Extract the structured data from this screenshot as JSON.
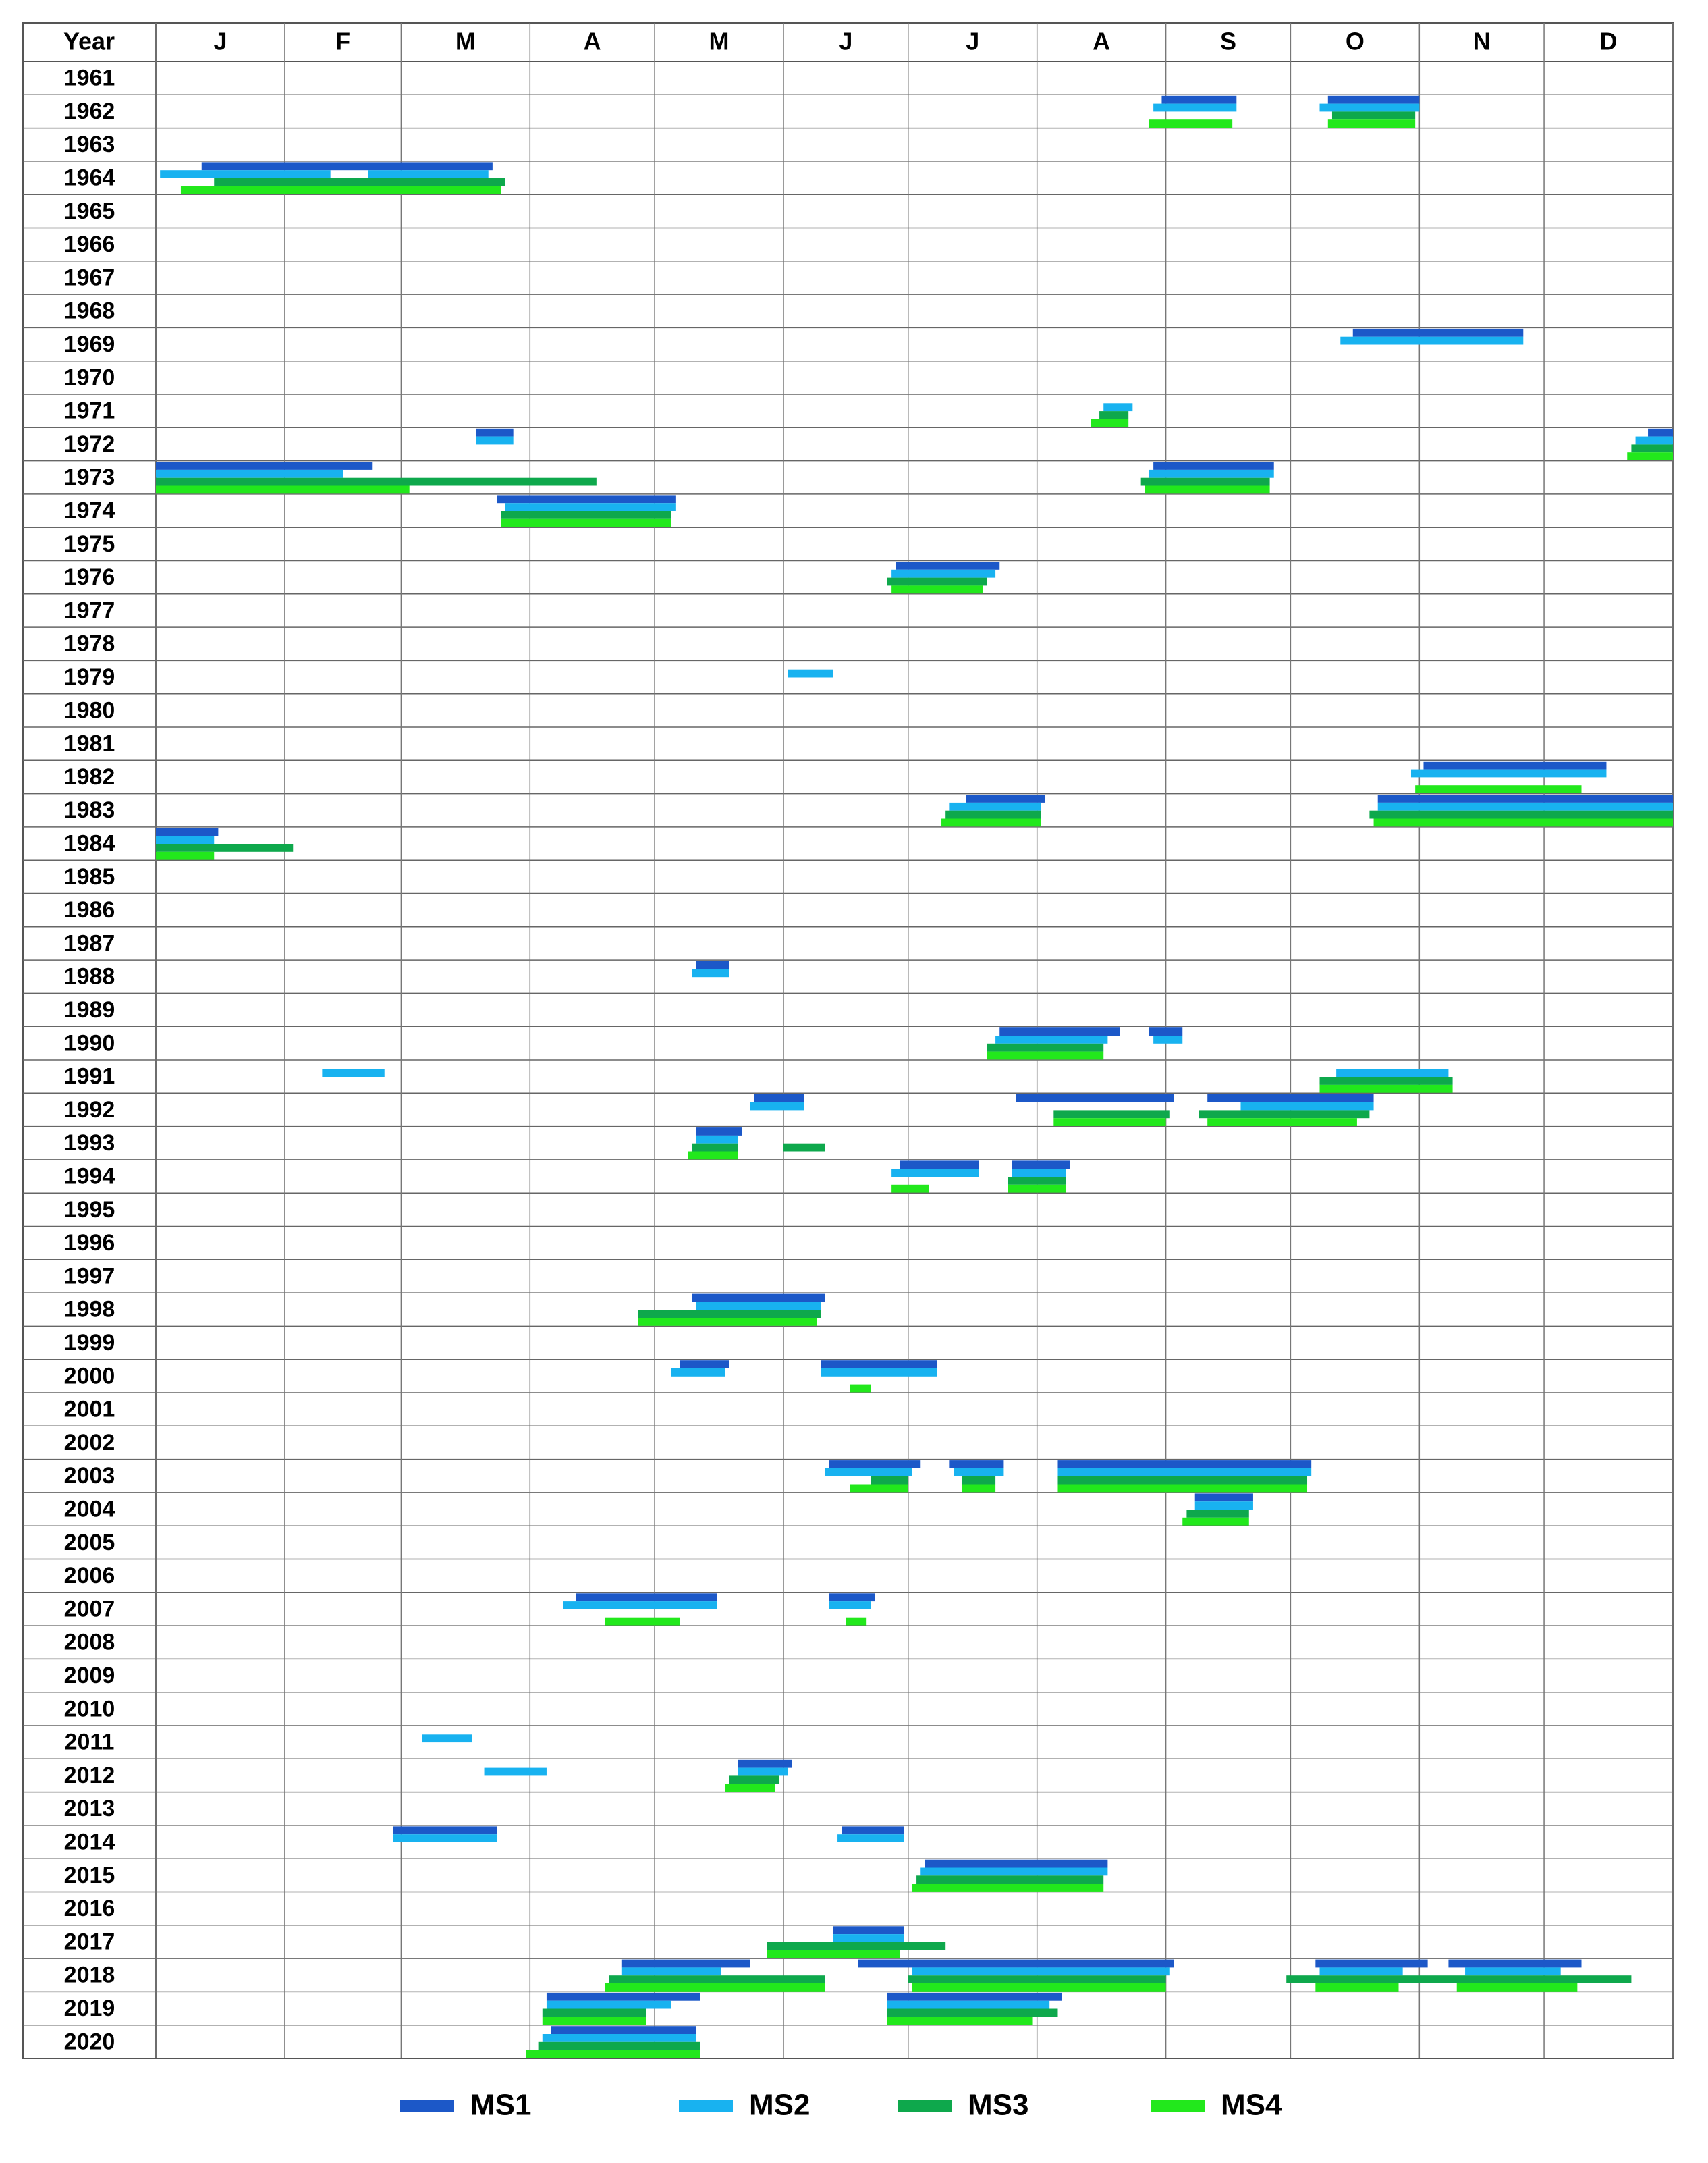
{
  "chart_data": {
    "type": "gantt",
    "row_header": "Year",
    "months": [
      "J",
      "F",
      "M",
      "A",
      "M",
      "J",
      "J",
      "A",
      "S",
      "O",
      "N",
      "D"
    ],
    "xlim": [
      0,
      365
    ],
    "xticks": [
      0,
      31,
      59,
      90,
      120,
      151,
      181,
      212,
      243,
      273,
      304,
      334,
      365
    ],
    "categories": [
      "1961",
      "1962",
      "1963",
      "1964",
      "1965",
      "1966",
      "1967",
      "1968",
      "1969",
      "1970",
      "1971",
      "1972",
      "1973",
      "1974",
      "1975",
      "1976",
      "1977",
      "1978",
      "1979",
      "1980",
      "1981",
      "1982",
      "1983",
      "1984",
      "1985",
      "1986",
      "1987",
      "1988",
      "1989",
      "1990",
      "1991",
      "1992",
      "1993",
      "1994",
      "1995",
      "1996",
      "1997",
      "1998",
      "1999",
      "2000",
      "2001",
      "2002",
      "2003",
      "2004",
      "2005",
      "2006",
      "2007",
      "2008",
      "2009",
      "2010",
      "2011",
      "2012",
      "2013",
      "2014",
      "2015",
      "2016",
      "2017",
      "2018",
      "2019",
      "2020"
    ],
    "series": [
      {
        "name": "MS1",
        "color": "#1c58c8",
        "values": [
          [],
          [
            [
              242,
              260
            ],
            [
              282,
              304
            ]
          ],
          [],
          [
            [
              11,
              81
            ]
          ],
          [],
          [],
          [],
          [],
          [
            [
              288,
              329
            ]
          ],
          [],
          [],
          [
            [
              77,
              86
            ],
            [
              359,
              365
            ]
          ],
          [
            [
              0,
              52
            ],
            [
              240,
              269
            ]
          ],
          [
            [
              82,
              125
            ]
          ],
          [],
          [
            [
              178,
              203
            ]
          ],
          [],
          [],
          [],
          [],
          [],
          [
            [
              305,
              349
            ]
          ],
          [
            [
              195,
              214
            ],
            [
              294,
              365
            ]
          ],
          [
            [
              0,
              15
            ]
          ],
          [],
          [],
          [],
          [
            [
              130,
              138
            ]
          ],
          [],
          [
            [
              203,
              232
            ],
            [
              239,
              247
            ]
          ],
          [],
          [
            [
              144,
              156
            ],
            [
              207,
              245
            ],
            [
              253,
              293
            ]
          ],
          [
            [
              130,
              141
            ]
          ],
          [
            [
              179,
              198
            ],
            [
              206,
              220
            ]
          ],
          [],
          [],
          [],
          [
            [
              129,
              161
            ]
          ],
          [],
          [
            [
              126,
              138
            ],
            [
              160,
              188
            ]
          ],
          [],
          [],
          [
            [
              162,
              184
            ],
            [
              191,
              204
            ],
            [
              217,
              278
            ]
          ],
          [
            [
              250,
              264
            ]
          ],
          [],
          [],
          [
            [
              101,
              135
            ],
            [
              162,
              173
            ]
          ],
          [],
          [],
          [],
          [],
          [
            [
              140,
              153
            ]
          ],
          [],
          [
            [
              57,
              82
            ],
            [
              165,
              180
            ]
          ],
          [
            [
              185,
              229
            ]
          ],
          [],
          [
            [
              163,
              180
            ]
          ],
          [
            [
              112,
              143
            ],
            [
              169,
              245
            ],
            [
              279,
              306
            ],
            [
              311,
              343
            ]
          ],
          [
            [
              94,
              131
            ],
            [
              176,
              218
            ]
          ],
          [
            [
              95,
              130
            ]
          ]
        ]
      },
      {
        "name": "MS2",
        "color": "#18b2f0",
        "values": [
          [],
          [
            [
              240,
              260
            ],
            [
              280,
              304
            ]
          ],
          [],
          [
            [
              1,
              42
            ],
            [
              51,
              80
            ]
          ],
          [],
          [],
          [],
          [],
          [
            [
              285,
              329
            ]
          ],
          [],
          [
            [
              228,
              235
            ]
          ],
          [
            [
              77,
              86
            ],
            [
              356,
              365
            ]
          ],
          [
            [
              0,
              45
            ],
            [
              239,
              269
            ]
          ],
          [
            [
              84,
              125
            ]
          ],
          [],
          [
            [
              177,
              202
            ]
          ],
          [],
          [],
          [
            [
              152,
              163
            ]
          ],
          [],
          [],
          [
            [
              302,
              349
            ]
          ],
          [
            [
              191,
              213
            ],
            [
              294,
              365
            ]
          ],
          [
            [
              0,
              14
            ]
          ],
          [],
          [],
          [],
          [
            [
              129,
              138
            ]
          ],
          [],
          [
            [
              202,
              229
            ],
            [
              240,
              247
            ]
          ],
          [
            [
              40,
              55
            ],
            [
              284,
              311
            ]
          ],
          [
            [
              143,
              156
            ],
            [
              261,
              293
            ]
          ],
          [
            [
              130,
              140
            ]
          ],
          [
            [
              177,
              198
            ],
            [
              206,
              219
            ]
          ],
          [],
          [],
          [],
          [
            [
              130,
              160
            ]
          ],
          [],
          [
            [
              124,
              137
            ],
            [
              160,
              188
            ]
          ],
          [],
          [],
          [
            [
              161,
              182
            ],
            [
              192,
              204
            ],
            [
              217,
              278
            ]
          ],
          [
            [
              250,
              264
            ]
          ],
          [],
          [],
          [
            [
              98,
              135
            ],
            [
              162,
              172
            ]
          ],
          [],
          [],
          [],
          [
            [
              64,
              76
            ]
          ],
          [
            [
              79,
              94
            ],
            [
              140,
              152
            ]
          ],
          [],
          [
            [
              57,
              82
            ],
            [
              164,
              180
            ]
          ],
          [
            [
              184,
              229
            ]
          ],
          [],
          [
            [
              163,
              180
            ]
          ],
          [
            [
              112,
              136
            ],
            [
              182,
              244
            ],
            [
              280,
              300
            ],
            [
              315,
              338
            ]
          ],
          [
            [
              94,
              124
            ],
            [
              176,
              215
            ]
          ],
          [
            [
              93,
              130
            ]
          ]
        ]
      },
      {
        "name": "MS3",
        "color": "#0ea84c",
        "values": [
          [],
          [
            [
              283,
              303
            ]
          ],
          [],
          [
            [
              14,
              84
            ]
          ],
          [],
          [],
          [],
          [],
          [],
          [],
          [
            [
              227,
              234
            ]
          ],
          [
            [
              355,
              365
            ]
          ],
          [
            [
              0,
              106
            ],
            [
              237,
              268
            ]
          ],
          [
            [
              83,
              124
            ]
          ],
          [],
          [
            [
              176,
              200
            ]
          ],
          [],
          [],
          [],
          [],
          [],
          [],
          [
            [
              190,
              213
            ],
            [
              292,
              365
            ]
          ],
          [
            [
              0,
              33
            ]
          ],
          [],
          [],
          [],
          [],
          [],
          [
            [
              200,
              228
            ]
          ],
          [
            [
              280,
              312
            ]
          ],
          [
            [
              216,
              244
            ],
            [
              251,
              292
            ]
          ],
          [
            [
              129,
              140
            ],
            [
              151,
              161
            ]
          ],
          [
            [
              205,
              219
            ]
          ],
          [],
          [],
          [],
          [
            [
              116,
              160
            ]
          ],
          [],
          [],
          [],
          [],
          [
            [
              172,
              181
            ],
            [
              194,
              202
            ],
            [
              217,
              277
            ]
          ],
          [
            [
              248,
              263
            ]
          ],
          [],
          [],
          [],
          [],
          [],
          [],
          [],
          [
            [
              138,
              150
            ]
          ],
          [],
          [],
          [
            [
              183,
              228
            ]
          ],
          [],
          [
            [
              147,
              190
            ]
          ],
          [
            [
              109,
              161
            ],
            [
              181,
              243
            ],
            [
              272,
              355
            ]
          ],
          [
            [
              93,
              118
            ],
            [
              176,
              217
            ]
          ],
          [
            [
              92,
              131
            ]
          ]
        ]
      },
      {
        "name": "MS4",
        "color": "#22e81c",
        "values": [
          [],
          [
            [
              239,
              259
            ],
            [
              282,
              303
            ]
          ],
          [],
          [
            [
              6,
              83
            ]
          ],
          [],
          [],
          [],
          [],
          [],
          [],
          [
            [
              225,
              234
            ]
          ],
          [
            [
              354,
              365
            ]
          ],
          [
            [
              0,
              61
            ],
            [
              238,
              268
            ]
          ],
          [
            [
              83,
              124
            ]
          ],
          [],
          [
            [
              177,
              199
            ]
          ],
          [],
          [],
          [],
          [],
          [],
          [
            [
              303,
              343
            ]
          ],
          [
            [
              189,
              213
            ],
            [
              293,
              365
            ]
          ],
          [
            [
              0,
              14
            ]
          ],
          [],
          [],
          [],
          [],
          [],
          [
            [
              200,
              228
            ]
          ],
          [
            [
              280,
              312
            ]
          ],
          [
            [
              216,
              243
            ],
            [
              253,
              289
            ]
          ],
          [
            [
              128,
              140
            ]
          ],
          [
            [
              177,
              186
            ],
            [
              205,
              219
            ]
          ],
          [],
          [],
          [],
          [
            [
              116,
              159
            ]
          ],
          [],
          [
            [
              167,
              172
            ]
          ],
          [],
          [],
          [
            [
              167,
              181
            ],
            [
              194,
              202
            ],
            [
              217,
              277
            ]
          ],
          [
            [
              247,
              263
            ]
          ],
          [],
          [],
          [
            [
              108,
              126
            ],
            [
              166,
              171
            ]
          ],
          [],
          [],
          [],
          [],
          [
            [
              137,
              149
            ]
          ],
          [],
          [],
          [
            [
              182,
              228
            ]
          ],
          [],
          [
            [
              147,
              179
            ]
          ],
          [
            [
              108,
              161
            ],
            [
              182,
              243
            ],
            [
              279,
              299
            ],
            [
              313,
              342
            ]
          ],
          [
            [
              93,
              118
            ],
            [
              176,
              211
            ]
          ],
          [
            [
              89,
              131
            ]
          ]
        ]
      }
    ],
    "grid": true,
    "legend": "bottom"
  }
}
